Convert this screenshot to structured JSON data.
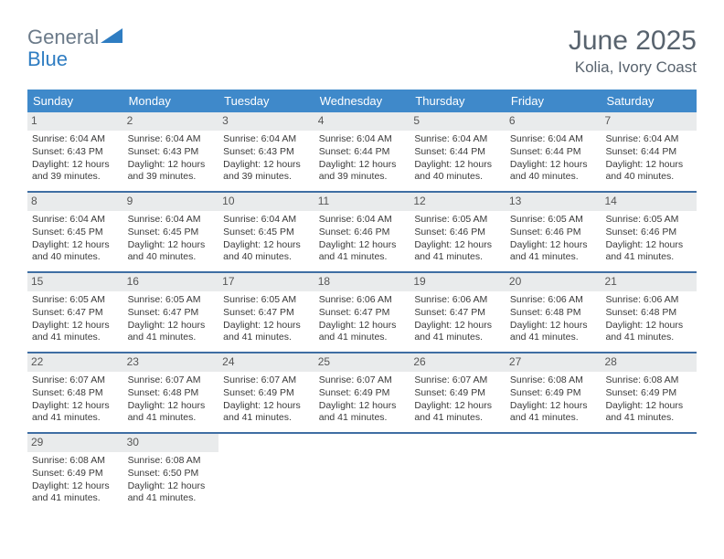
{
  "logo": {
    "text1": "General",
    "text2": "Blue"
  },
  "title": "June 2025",
  "subtitle": "Kolia, Ivory Coast",
  "colors": {
    "header_bg": "#3f89ca",
    "header_fg": "#ffffff",
    "week_border": "#3f6ea3",
    "daynum_bg": "#e9ebec",
    "text": "#3a3a3a",
    "title_color": "#58636e",
    "logo_gray": "#6b7a89",
    "logo_blue": "#2f7dc2"
  },
  "weekdays": [
    "Sunday",
    "Monday",
    "Tuesday",
    "Wednesday",
    "Thursday",
    "Friday",
    "Saturday"
  ],
  "weeks": [
    [
      {
        "n": "1",
        "sr": "Sunrise: 6:04 AM",
        "ss": "Sunset: 6:43 PM",
        "d1": "Daylight: 12 hours",
        "d2": "and 39 minutes."
      },
      {
        "n": "2",
        "sr": "Sunrise: 6:04 AM",
        "ss": "Sunset: 6:43 PM",
        "d1": "Daylight: 12 hours",
        "d2": "and 39 minutes."
      },
      {
        "n": "3",
        "sr": "Sunrise: 6:04 AM",
        "ss": "Sunset: 6:43 PM",
        "d1": "Daylight: 12 hours",
        "d2": "and 39 minutes."
      },
      {
        "n": "4",
        "sr": "Sunrise: 6:04 AM",
        "ss": "Sunset: 6:44 PM",
        "d1": "Daylight: 12 hours",
        "d2": "and 39 minutes."
      },
      {
        "n": "5",
        "sr": "Sunrise: 6:04 AM",
        "ss": "Sunset: 6:44 PM",
        "d1": "Daylight: 12 hours",
        "d2": "and 40 minutes."
      },
      {
        "n": "6",
        "sr": "Sunrise: 6:04 AM",
        "ss": "Sunset: 6:44 PM",
        "d1": "Daylight: 12 hours",
        "d2": "and 40 minutes."
      },
      {
        "n": "7",
        "sr": "Sunrise: 6:04 AM",
        "ss": "Sunset: 6:44 PM",
        "d1": "Daylight: 12 hours",
        "d2": "and 40 minutes."
      }
    ],
    [
      {
        "n": "8",
        "sr": "Sunrise: 6:04 AM",
        "ss": "Sunset: 6:45 PM",
        "d1": "Daylight: 12 hours",
        "d2": "and 40 minutes."
      },
      {
        "n": "9",
        "sr": "Sunrise: 6:04 AM",
        "ss": "Sunset: 6:45 PM",
        "d1": "Daylight: 12 hours",
        "d2": "and 40 minutes."
      },
      {
        "n": "10",
        "sr": "Sunrise: 6:04 AM",
        "ss": "Sunset: 6:45 PM",
        "d1": "Daylight: 12 hours",
        "d2": "and 40 minutes."
      },
      {
        "n": "11",
        "sr": "Sunrise: 6:04 AM",
        "ss": "Sunset: 6:46 PM",
        "d1": "Daylight: 12 hours",
        "d2": "and 41 minutes."
      },
      {
        "n": "12",
        "sr": "Sunrise: 6:05 AM",
        "ss": "Sunset: 6:46 PM",
        "d1": "Daylight: 12 hours",
        "d2": "and 41 minutes."
      },
      {
        "n": "13",
        "sr": "Sunrise: 6:05 AM",
        "ss": "Sunset: 6:46 PM",
        "d1": "Daylight: 12 hours",
        "d2": "and 41 minutes."
      },
      {
        "n": "14",
        "sr": "Sunrise: 6:05 AM",
        "ss": "Sunset: 6:46 PM",
        "d1": "Daylight: 12 hours",
        "d2": "and 41 minutes."
      }
    ],
    [
      {
        "n": "15",
        "sr": "Sunrise: 6:05 AM",
        "ss": "Sunset: 6:47 PM",
        "d1": "Daylight: 12 hours",
        "d2": "and 41 minutes."
      },
      {
        "n": "16",
        "sr": "Sunrise: 6:05 AM",
        "ss": "Sunset: 6:47 PM",
        "d1": "Daylight: 12 hours",
        "d2": "and 41 minutes."
      },
      {
        "n": "17",
        "sr": "Sunrise: 6:05 AM",
        "ss": "Sunset: 6:47 PM",
        "d1": "Daylight: 12 hours",
        "d2": "and 41 minutes."
      },
      {
        "n": "18",
        "sr": "Sunrise: 6:06 AM",
        "ss": "Sunset: 6:47 PM",
        "d1": "Daylight: 12 hours",
        "d2": "and 41 minutes."
      },
      {
        "n": "19",
        "sr": "Sunrise: 6:06 AM",
        "ss": "Sunset: 6:47 PM",
        "d1": "Daylight: 12 hours",
        "d2": "and 41 minutes."
      },
      {
        "n": "20",
        "sr": "Sunrise: 6:06 AM",
        "ss": "Sunset: 6:48 PM",
        "d1": "Daylight: 12 hours",
        "d2": "and 41 minutes."
      },
      {
        "n": "21",
        "sr": "Sunrise: 6:06 AM",
        "ss": "Sunset: 6:48 PM",
        "d1": "Daylight: 12 hours",
        "d2": "and 41 minutes."
      }
    ],
    [
      {
        "n": "22",
        "sr": "Sunrise: 6:07 AM",
        "ss": "Sunset: 6:48 PM",
        "d1": "Daylight: 12 hours",
        "d2": "and 41 minutes."
      },
      {
        "n": "23",
        "sr": "Sunrise: 6:07 AM",
        "ss": "Sunset: 6:48 PM",
        "d1": "Daylight: 12 hours",
        "d2": "and 41 minutes."
      },
      {
        "n": "24",
        "sr": "Sunrise: 6:07 AM",
        "ss": "Sunset: 6:49 PM",
        "d1": "Daylight: 12 hours",
        "d2": "and 41 minutes."
      },
      {
        "n": "25",
        "sr": "Sunrise: 6:07 AM",
        "ss": "Sunset: 6:49 PM",
        "d1": "Daylight: 12 hours",
        "d2": "and 41 minutes."
      },
      {
        "n": "26",
        "sr": "Sunrise: 6:07 AM",
        "ss": "Sunset: 6:49 PM",
        "d1": "Daylight: 12 hours",
        "d2": "and 41 minutes."
      },
      {
        "n": "27",
        "sr": "Sunrise: 6:08 AM",
        "ss": "Sunset: 6:49 PM",
        "d1": "Daylight: 12 hours",
        "d2": "and 41 minutes."
      },
      {
        "n": "28",
        "sr": "Sunrise: 6:08 AM",
        "ss": "Sunset: 6:49 PM",
        "d1": "Daylight: 12 hours",
        "d2": "and 41 minutes."
      }
    ],
    [
      {
        "n": "29",
        "sr": "Sunrise: 6:08 AM",
        "ss": "Sunset: 6:49 PM",
        "d1": "Daylight: 12 hours",
        "d2": "and 41 minutes."
      },
      {
        "n": "30",
        "sr": "Sunrise: 6:08 AM",
        "ss": "Sunset: 6:50 PM",
        "d1": "Daylight: 12 hours",
        "d2": "and 41 minutes."
      },
      null,
      null,
      null,
      null,
      null
    ]
  ]
}
